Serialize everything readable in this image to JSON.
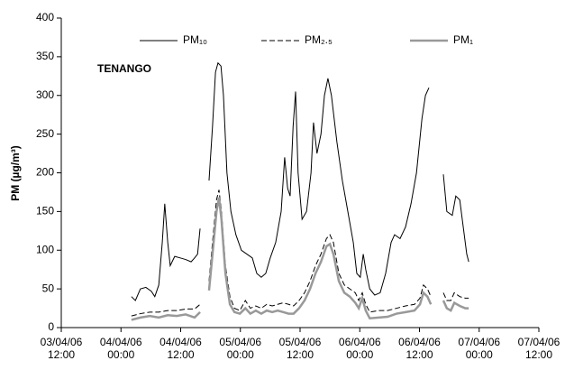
{
  "chart_data": {
    "type": "line",
    "ylabel": "PM (µg/m³)",
    "annotation": "TENANGO",
    "xlim": [
      0,
      96
    ],
    "xticks": [
      {
        "value": 0,
        "label": "03/04/06 12:00"
      },
      {
        "value": 12,
        "label": "04/04/06 00:00"
      },
      {
        "value": 24,
        "label": "04/04/06 12:00"
      },
      {
        "value": 36,
        "label": "05/04/06 00:00"
      },
      {
        "value": 48,
        "label": "05/04/06 12:00"
      },
      {
        "value": 60,
        "label": "06/04/06 00:00"
      },
      {
        "value": 72,
        "label": "06/04/06 12:00"
      },
      {
        "value": 84,
        "label": "07/04/06 00:00"
      },
      {
        "value": 96,
        "label": "07/04/06 12:00"
      }
    ],
    "ylim": [
      0,
      400
    ],
    "yticks": [
      0,
      50,
      100,
      150,
      200,
      250,
      300,
      350,
      400
    ],
    "legend": "top",
    "series": [
      {
        "name": "PM₁₀",
        "color": "#000000",
        "line_style": "solid",
        "x": [
          14.1,
          14.9,
          15.9,
          17.0,
          18.1,
          18.8,
          19.6,
          20.3,
          20.8,
          21.4,
          21.9,
          22.8,
          23.9,
          25.0,
          26.1,
          26.8,
          27.4,
          27.9,
          28.8,
          29.7,
          30.4,
          31.0,
          31.5,
          32.1,
          32.6,
          33.3,
          34.1,
          35.1,
          36.2,
          37.3,
          38.4,
          39.3,
          40.2,
          41.1,
          42.0,
          43.1,
          44.2,
          44.9,
          45.5,
          46.0,
          46.6,
          47.1,
          47.6,
          48.4,
          49.3,
          50.2,
          50.7,
          51.4,
          52.2,
          52.9,
          53.6,
          54.3,
          55.4,
          56.5,
          57.6,
          58.7,
          59.4,
          60.1,
          60.7,
          61.2,
          62.0,
          63.0,
          64.1,
          65.2,
          66.3,
          67.0,
          68.1,
          69.2,
          70.3,
          71.4,
          72.5,
          73.2,
          73.9,
          75.3,
          76.8,
          77.5,
          78.6,
          79.3,
          80.1,
          80.8,
          81.5,
          81.9
        ],
        "values": [
          40,
          35,
          50,
          52,
          47,
          40,
          55,
          110,
          160,
          110,
          80,
          92,
          90,
          88,
          85,
          90,
          95,
          128,
          null,
          190,
          260,
          330,
          342,
          338,
          300,
          200,
          150,
          120,
          100,
          95,
          90,
          70,
          65,
          70,
          90,
          110,
          150,
          220,
          180,
          170,
          260,
          305,
          200,
          140,
          150,
          200,
          265,
          225,
          250,
          300,
          322,
          300,
          240,
          190,
          150,
          110,
          70,
          65,
          95,
          75,
          50,
          42,
          45,
          70,
          110,
          120,
          115,
          130,
          160,
          200,
          270,
          300,
          310,
          null,
          198,
          150,
          145,
          170,
          165,
          130,
          95,
          85
        ]
      },
      {
        "name": "PM₂.₅",
        "color": "#000000",
        "line_style": "dashed",
        "x": [
          14.1,
          15.9,
          17.8,
          19.6,
          21.4,
          23.2,
          25.0,
          26.8,
          27.9,
          28.8,
          29.7,
          30.4,
          31.2,
          31.7,
          32.2,
          33.0,
          33.9,
          34.8,
          35.9,
          37.0,
          38.0,
          39.1,
          40.2,
          41.3,
          42.4,
          43.5,
          44.6,
          45.7,
          46.7,
          47.8,
          48.9,
          50.0,
          51.1,
          52.2,
          53.3,
          54.0,
          54.7,
          55.8,
          56.9,
          58.0,
          59.1,
          59.8,
          60.5,
          61.2,
          62.0,
          63.8,
          65.6,
          67.4,
          69.2,
          71.0,
          72.1,
          72.8,
          73.6,
          74.3,
          75.5,
          76.8,
          77.5,
          78.3,
          79.0,
          80.1,
          81.2,
          81.9
        ],
        "values": [
          15,
          18,
          20,
          20,
          22,
          22,
          24,
          24,
          30,
          null,
          60,
          110,
          165,
          178,
          150,
          80,
          40,
          25,
          22,
          35,
          25,
          28,
          25,
          30,
          28,
          30,
          32,
          30,
          28,
          35,
          45,
          60,
          80,
          95,
          115,
          120,
          110,
          70,
          55,
          50,
          45,
          35,
          45,
          30,
          20,
          22,
          22,
          25,
          28,
          30,
          38,
          55,
          50,
          40,
          null,
          45,
          35,
          35,
          45,
          40,
          38,
          38
        ]
      },
      {
        "name": "PM₁",
        "color": "#999999",
        "line_style": "solid",
        "x": [
          14.1,
          15.9,
          17.8,
          19.6,
          21.4,
          23.2,
          25.0,
          26.8,
          27.9,
          28.8,
          29.7,
          30.4,
          31.2,
          31.7,
          32.2,
          33.0,
          33.9,
          34.8,
          35.9,
          37.0,
          38.0,
          39.1,
          40.2,
          41.3,
          42.4,
          43.5,
          44.6,
          45.7,
          46.7,
          47.8,
          48.9,
          50.0,
          51.1,
          52.2,
          53.3,
          54.0,
          54.7,
          55.8,
          56.9,
          58.0,
          59.1,
          59.8,
          60.5,
          61.2,
          62.0,
          63.8,
          65.6,
          67.4,
          69.2,
          71.0,
          72.1,
          72.8,
          73.6,
          74.3,
          75.5,
          76.8,
          77.5,
          78.3,
          79.0,
          80.1,
          81.2,
          81.9
        ],
        "values": [
          10,
          13,
          15,
          13,
          16,
          15,
          17,
          13,
          20,
          null,
          48,
          95,
          150,
          168,
          140,
          70,
          30,
          20,
          18,
          25,
          18,
          22,
          18,
          22,
          20,
          22,
          20,
          18,
          18,
          25,
          35,
          50,
          70,
          85,
          105,
          108,
          95,
          60,
          45,
          40,
          32,
          25,
          38,
          22,
          12,
          13,
          14,
          18,
          20,
          22,
          30,
          45,
          40,
          30,
          null,
          35,
          25,
          22,
          32,
          28,
          25,
          25
        ]
      }
    ]
  }
}
